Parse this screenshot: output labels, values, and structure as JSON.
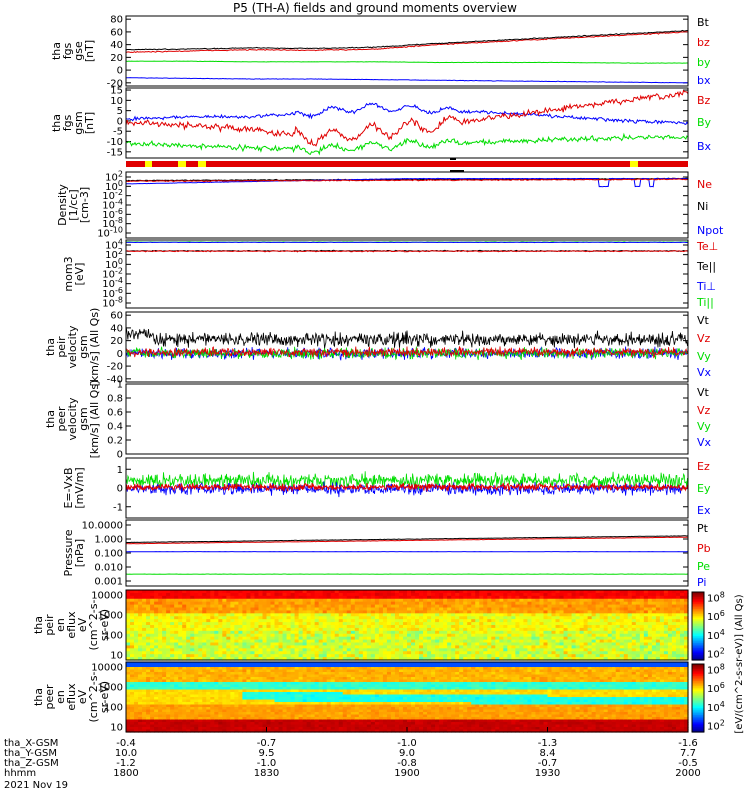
{
  "title": "P5 (TH-A) fields and ground moments overview",
  "date": "2021 Nov 19",
  "colors": {
    "black": "#000000",
    "red": "#e00000",
    "green": "#00dd00",
    "blue": "#0000ff"
  },
  "chart_data": [
    {
      "type": "line",
      "ylabel": [
        "tha",
        "fgs",
        "gse",
        "[nT]"
      ],
      "yticks": [
        -20,
        0,
        20,
        40,
        60,
        80
      ],
      "ylim": [
        -25,
        85
      ],
      "series": [
        {
          "name": "Bt",
          "color": "#000000"
        },
        {
          "name": "bz",
          "color": "#e00000"
        },
        {
          "name": "by",
          "color": "#00dd00"
        },
        {
          "name": "bx",
          "color": "#0000ff"
        }
      ],
      "values": {
        "Bt": [
          32,
          33,
          35,
          34,
          36,
          42,
          47,
          52,
          57,
          62
        ],
        "bz": [
          28,
          30,
          32,
          31,
          33,
          40,
          45,
          50,
          55,
          60
        ],
        "by": [
          14,
          14,
          13,
          13,
          13,
          12,
          12,
          12,
          11,
          11
        ],
        "bx": [
          -12,
          -13,
          -14,
          -14,
          -15,
          -16,
          -17,
          -18,
          -19,
          -20
        ]
      }
    },
    {
      "type": "line",
      "ylabel": [
        "tha",
        "fgs",
        "gsm",
        "[nT]"
      ],
      "yticks": [
        -15,
        -10,
        -5,
        0,
        5,
        10,
        15
      ],
      "ylim": [
        -18,
        16
      ],
      "series": [
        {
          "name": "Bz",
          "color": "#e00000"
        },
        {
          "name": "By",
          "color": "#00dd00"
        },
        {
          "name": "Bx",
          "color": "#0000ff"
        }
      ],
      "values": {
        "Bz": [
          -1,
          -2,
          -4,
          -8,
          -5,
          -2,
          2,
          6,
          10,
          13
        ],
        "By": [
          -11,
          -12,
          -13,
          -14,
          -12,
          -11,
          -10,
          -9,
          -8,
          -8
        ],
        "Bx": [
          1,
          2,
          2,
          4,
          7,
          5,
          4,
          2,
          0,
          -1
        ]
      }
    },
    {
      "type": "line",
      "ylabel": [
        "Density",
        "[1/cc]",
        "[cm-3]"
      ],
      "yticks_labels": [
        "10^2",
        "10^0",
        "10^-2",
        "10^-4",
        "10^-6",
        "10^-8",
        "10^-10"
      ],
      "scale": "log",
      "series": [
        {
          "name": "Ne",
          "color": "#e00000"
        },
        {
          "name": "Ni",
          "color": "#000000"
        },
        {
          "name": "Npot",
          "color": "#0000ff"
        }
      ]
    },
    {
      "type": "line",
      "ylabel": [
        "mom3",
        "[eV]"
      ],
      "yticks_labels": [
        "10^4",
        "10^2",
        "10^0",
        "10^-2",
        "10^-4",
        "10^-6",
        "10^-8"
      ],
      "scale": "log",
      "series": [
        {
          "name": "Te⊥",
          "color": "#e00000"
        },
        {
          "name": "Te||",
          "color": "#000000"
        },
        {
          "name": "Ti⊥",
          "color": "#0000ff"
        },
        {
          "name": "Ti||",
          "color": "#00dd00"
        }
      ]
    },
    {
      "type": "line",
      "ylabel": [
        "tha",
        "peir",
        "velocity",
        "gsm",
        "[km/s] (All Qs)"
      ],
      "yticks": [
        -40,
        -20,
        0,
        20,
        40,
        60
      ],
      "ylim": [
        -45,
        65
      ],
      "series": [
        {
          "name": "Vt",
          "color": "#000000"
        },
        {
          "name": "Vz",
          "color": "#e00000"
        },
        {
          "name": "Vy",
          "color": "#00dd00"
        },
        {
          "name": "Vx",
          "color": "#0000ff"
        }
      ]
    },
    {
      "type": "line",
      "ylabel": [
        "tha",
        "peer",
        "velocity",
        "gsm",
        "[km/s] (All Qs)"
      ],
      "yticks": [
        0.0,
        0.2,
        0.4,
        0.6,
        0.8,
        1.0
      ],
      "ylim": [
        0,
        1
      ],
      "series": [
        {
          "name": "Vt",
          "color": "#000000"
        },
        {
          "name": "Vz",
          "color": "#e00000"
        },
        {
          "name": "Vy",
          "color": "#00dd00"
        },
        {
          "name": "Vx",
          "color": "#0000ff"
        }
      ]
    },
    {
      "type": "line",
      "ylabel": [
        "E=-VxB",
        "[mV/m]"
      ],
      "yticks": [
        -1,
        0,
        1
      ],
      "ylim": [
        -1.6,
        1.6
      ],
      "series": [
        {
          "name": "Ez",
          "color": "#e00000"
        },
        {
          "name": "Ey",
          "color": "#00dd00"
        },
        {
          "name": "Ex",
          "color": "#0000ff"
        }
      ]
    },
    {
      "type": "line",
      "ylabel": [
        "Pressure",
        "[nPa]"
      ],
      "yticks_labels": [
        "10.0000",
        "1.000",
        "0.100",
        "0.010",
        "0.001"
      ],
      "scale": "log",
      "series": [
        {
          "name": "Pt",
          "color": "#000000"
        },
        {
          "name": "Pb",
          "color": "#e00000"
        },
        {
          "name": "Pe",
          "color": "#00dd00"
        },
        {
          "name": "Pi",
          "color": "#0000ff"
        }
      ]
    },
    {
      "type": "heatmap",
      "ylabel": [
        "tha",
        "peir",
        "en",
        "eflux",
        "eV",
        "(cm^2-s-",
        "sr-eV)"
      ],
      "yticks_labels": [
        "10000",
        "1000",
        "100",
        "10"
      ],
      "colorbar_labels": [
        "10^8",
        "10^6",
        "10^4",
        "10^2"
      ]
    },
    {
      "type": "heatmap",
      "ylabel": [
        "tha",
        "peer",
        "en",
        "eflux",
        "eV",
        "(cm^2-s-",
        "sr-eV)"
      ],
      "yticks_labels": [
        "10000",
        "1000",
        "100",
        "10"
      ],
      "colorbar_labels": [
        "10^8",
        "10^6",
        "10^4",
        "10^2"
      ]
    }
  ],
  "colorbar_title": "[eV/(cm^2-s-sr-eV)] (All Qs)",
  "footer": {
    "rows": [
      {
        "label": "tha_X-GSM",
        "values": [
          "-0.4",
          "-0.7",
          "-1.0",
          "-1.3",
          "-1.6"
        ]
      },
      {
        "label": "tha_Y-GSM",
        "values": [
          "10.0",
          "9.5",
          "9.0",
          "8.4",
          "7.7"
        ]
      },
      {
        "label": "tha_Z-GSM",
        "values": [
          "-1.2",
          "-1.0",
          "-0.8",
          "-0.7",
          "-0.5"
        ]
      },
      {
        "label": "hhmm",
        "values": [
          "1800",
          "1830",
          "1900",
          "1930",
          "2000"
        ]
      }
    ]
  }
}
